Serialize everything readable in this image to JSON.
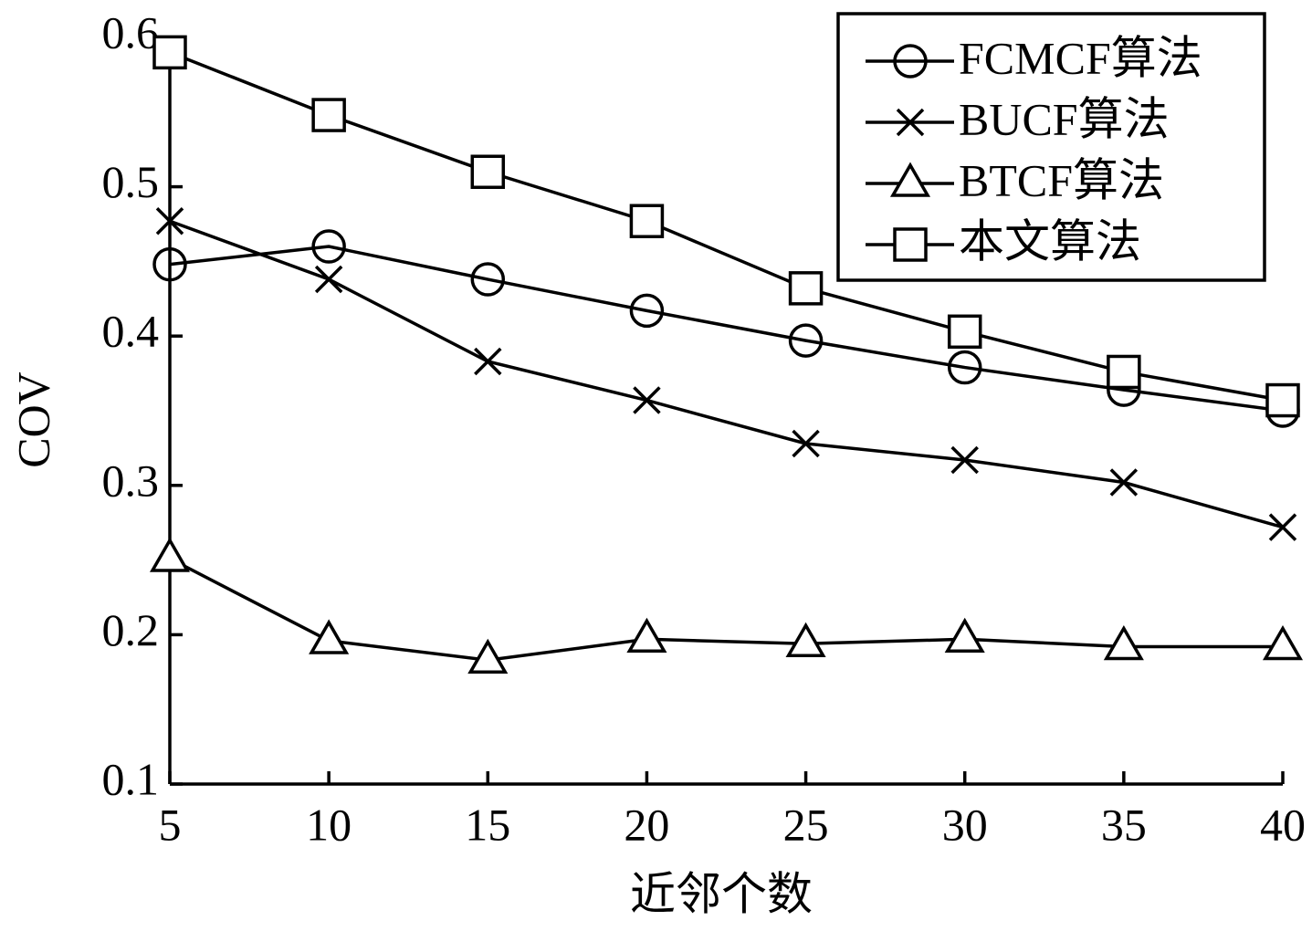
{
  "chart_data": {
    "type": "line",
    "x_label": "近邻个数",
    "y_label": "COV",
    "x": [
      5,
      10,
      15,
      20,
      25,
      30,
      35,
      40
    ],
    "xlim": [
      5,
      40
    ],
    "xticks": [
      5,
      10,
      15,
      20,
      25,
      30,
      35,
      40
    ],
    "ylim": [
      0.1,
      0.6
    ],
    "yticks": [
      0.1,
      0.2,
      0.3,
      0.4,
      0.5,
      0.6
    ],
    "grid": false,
    "legend": "upper right",
    "series": [
      {
        "name": "FCMCF算法",
        "color": "#000000",
        "marker": "circle",
        "values": [
          0.448,
          0.46,
          0.438,
          0.417,
          0.397,
          0.379,
          0.364,
          0.35
        ]
      },
      {
        "name": "BUCF算法",
        "color": "#000000",
        "marker": "x",
        "values": [
          0.477,
          0.438,
          0.383,
          0.357,
          0.328,
          0.317,
          0.302,
          0.272
        ]
      },
      {
        "name": "BTCF算法",
        "color": "#000000",
        "marker": "triangle",
        "values": [
          0.251,
          0.196,
          0.183,
          0.197,
          0.194,
          0.197,
          0.192,
          0.192
        ]
      },
      {
        "name": "本文算法",
        "color": "#000000",
        "marker": "square",
        "values": [
          0.59,
          0.548,
          0.51,
          0.477,
          0.432,
          0.403,
          0.376,
          0.357
        ]
      }
    ]
  }
}
